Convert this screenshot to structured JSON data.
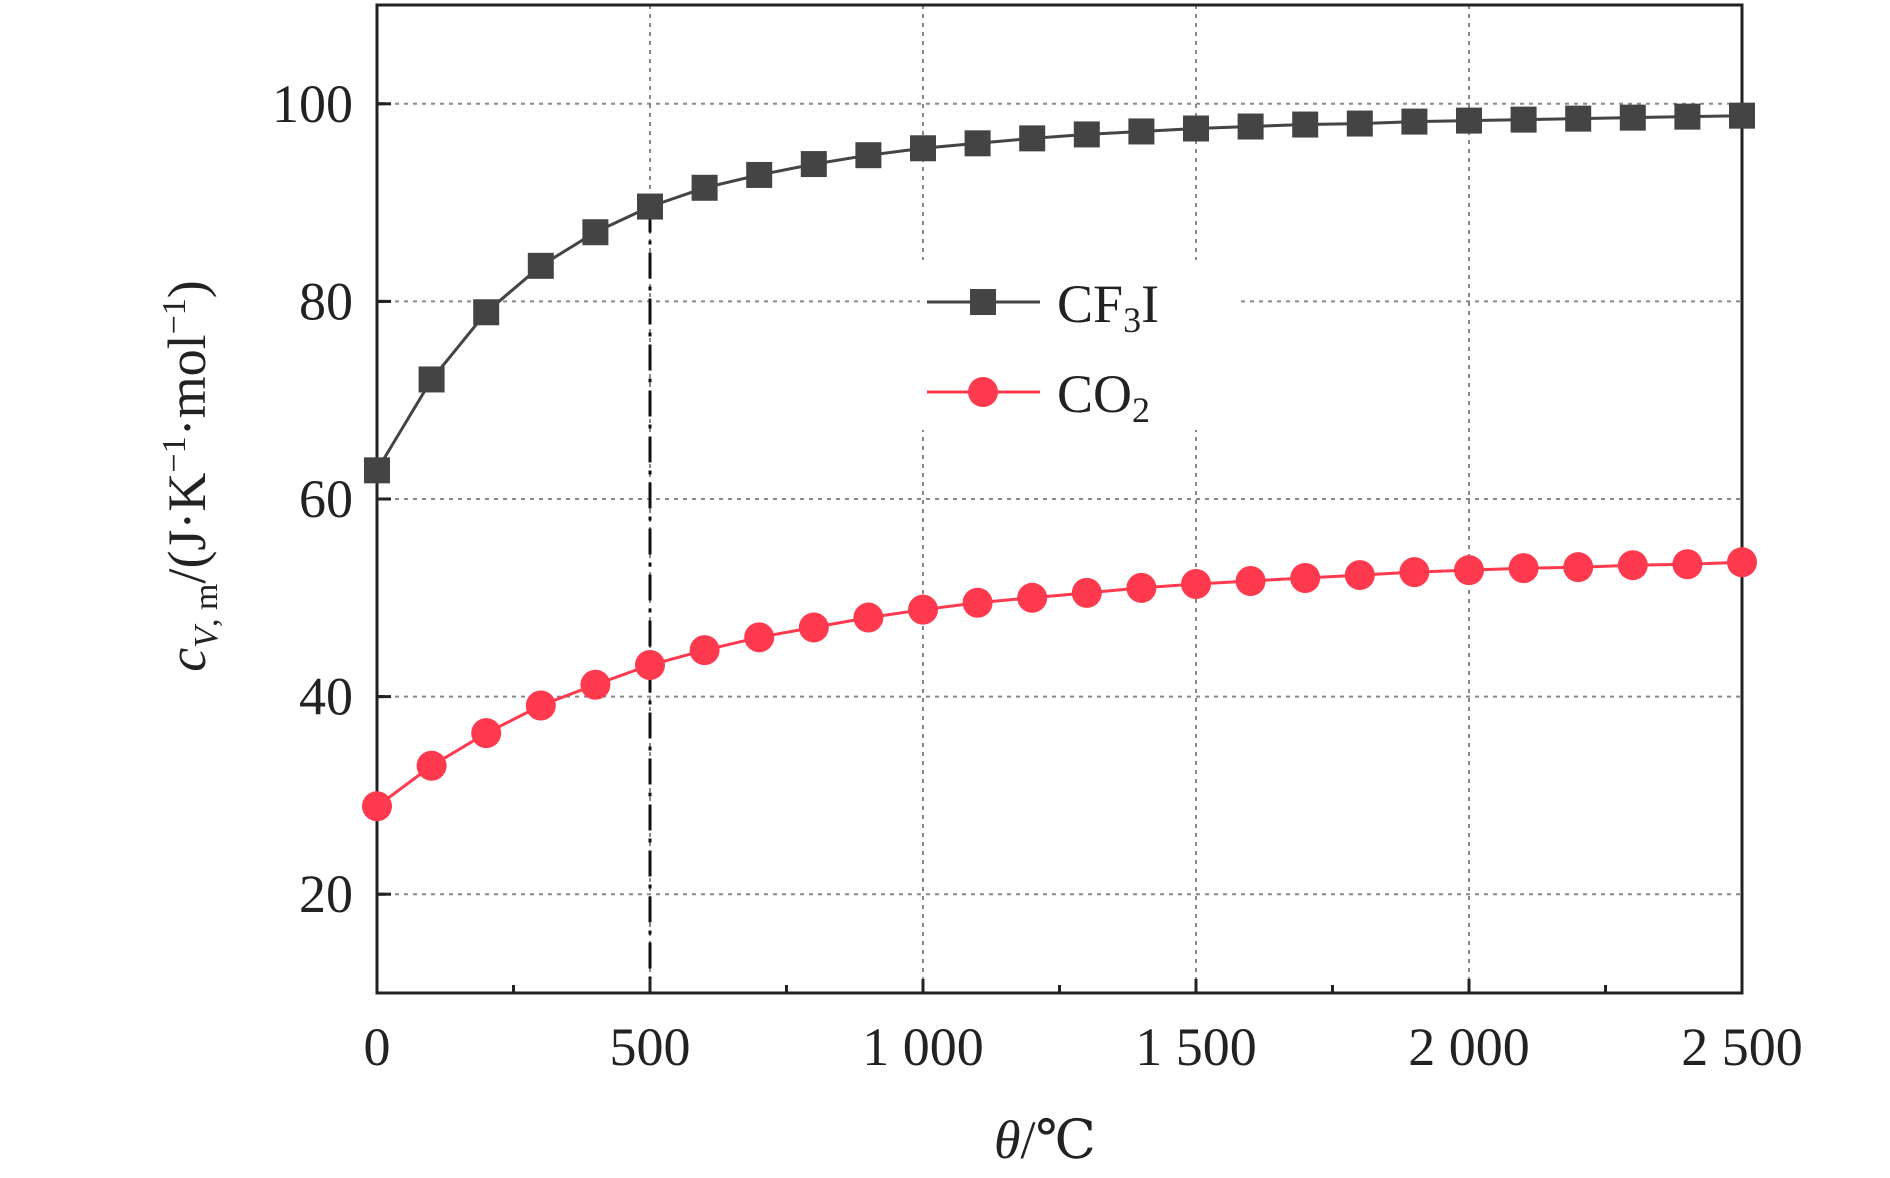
{
  "chart_data": {
    "type": "line",
    "x": [
      0,
      100,
      200,
      300,
      400,
      500,
      600,
      700,
      800,
      900,
      1000,
      1100,
      1200,
      1300,
      1400,
      1500,
      1600,
      1700,
      1800,
      1900,
      2000,
      2100,
      2200,
      2300,
      2400,
      2500
    ],
    "x_tick_values": [
      0,
      500,
      1000,
      1500,
      2000,
      2500
    ],
    "x_tick_labels": [
      "0",
      "500",
      "1 000",
      "1 500",
      "2 000",
      "2 500"
    ],
    "y_tick_values": [
      20,
      40,
      60,
      80,
      100
    ],
    "y_tick_labels": [
      "20",
      "40",
      "60",
      "80",
      "100"
    ],
    "xlim": [
      0,
      2500
    ],
    "ylim": [
      10,
      110
    ],
    "grid": true,
    "reference_line_x": 500,
    "legend_position": "center",
    "xlabel": {
      "italic": "θ",
      "rest": "/℃"
    },
    "ylabel": {
      "c": "c",
      "sub": "V",
      "sub2": ", m",
      "mid": "/(J·K",
      "sup1": "−1",
      "mid2": "·mol",
      "sup2": "−1",
      "end": ")"
    },
    "series": [
      {
        "name_main": "CF",
        "name_sub": "3",
        "name_end": "I",
        "color": "#444444",
        "marker": "square",
        "values": [
          62.9,
          72.1,
          78.9,
          83.6,
          87.0,
          89.6,
          91.5,
          92.8,
          93.9,
          94.8,
          95.5,
          96.0,
          96.5,
          96.9,
          97.2,
          97.5,
          97.7,
          97.9,
          98.0,
          98.2,
          98.3,
          98.4,
          98.5,
          98.6,
          98.7,
          98.8
        ]
      },
      {
        "name_main": "CO",
        "name_sub": "2",
        "name_end": "",
        "color": "#ff3a4e",
        "marker": "circle",
        "values": [
          28.9,
          33.0,
          36.3,
          39.1,
          41.2,
          43.2,
          44.7,
          46.0,
          47.0,
          48.0,
          48.8,
          49.5,
          50.0,
          50.5,
          51.0,
          51.4,
          51.7,
          52.0,
          52.3,
          52.6,
          52.8,
          53.0,
          53.1,
          53.3,
          53.4,
          53.6
        ]
      }
    ]
  }
}
